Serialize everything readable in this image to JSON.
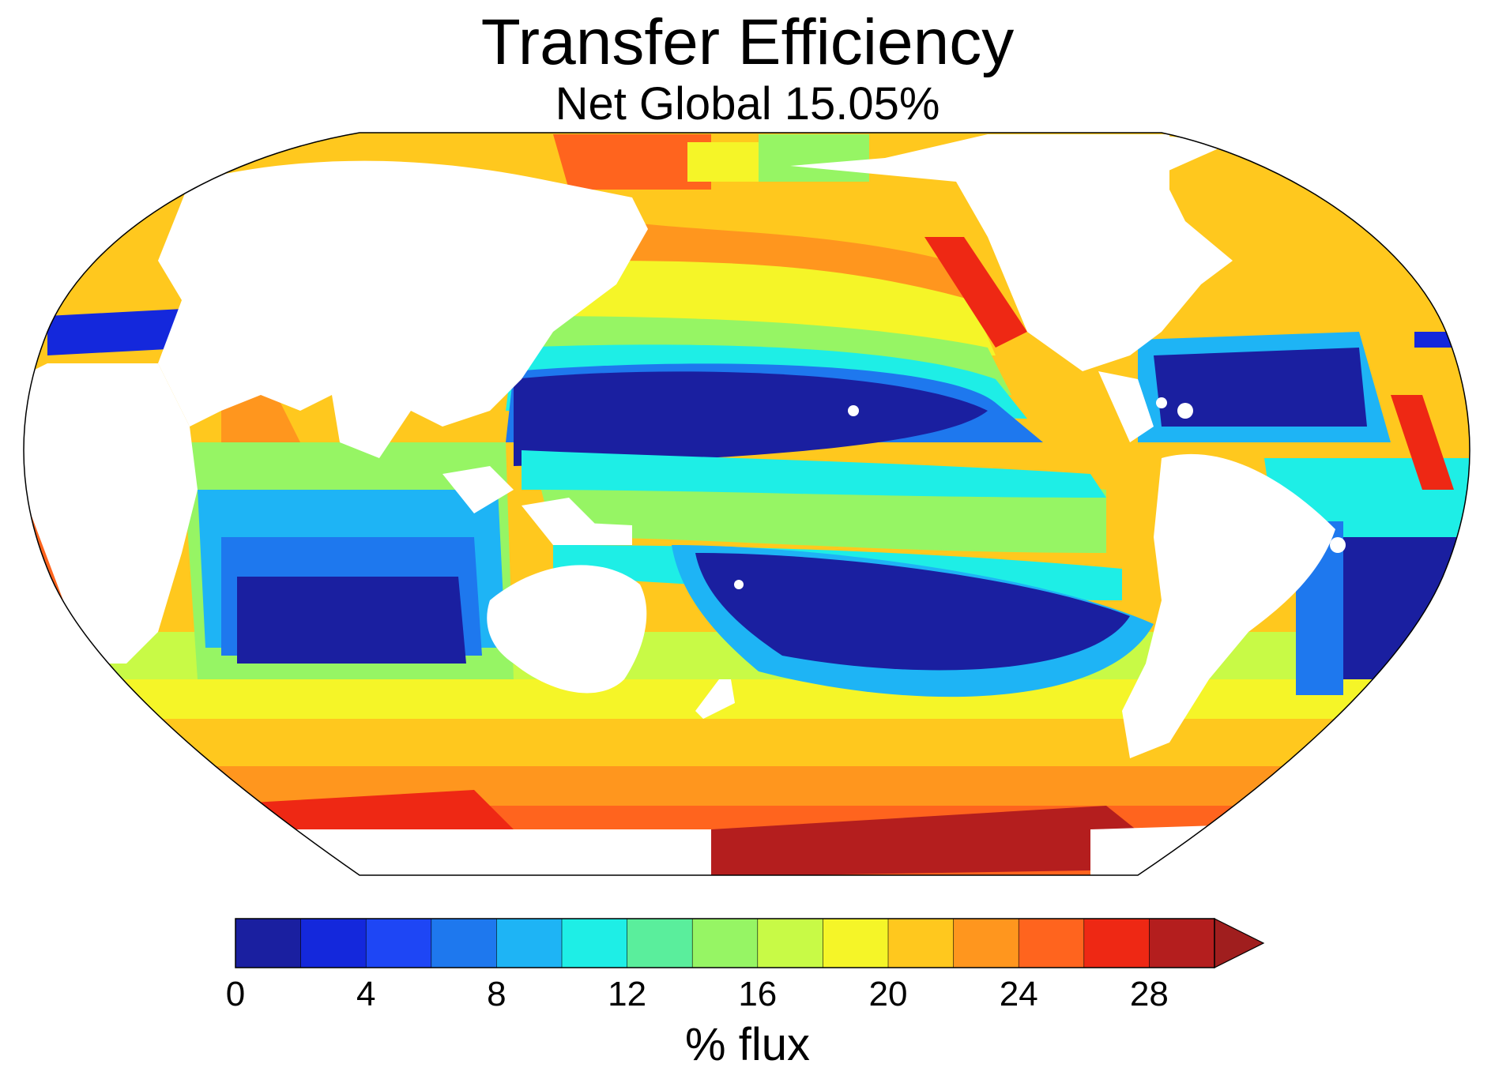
{
  "header": {
    "title": "Transfer Efficiency",
    "subtitle": "Net Global 15.05%"
  },
  "map": {
    "projection": "Robinson",
    "land_color": "#ffffff",
    "outline_color": "#000000"
  },
  "colorbar": {
    "label": "% flux",
    "min": 0,
    "max": 30,
    "step": 2,
    "extend": "max",
    "tick_values": [
      "0",
      "4",
      "8",
      "12",
      "16",
      "20",
      "24",
      "28"
    ],
    "colors": [
      "#1a1fa0",
      "#1428dc",
      "#1e46f5",
      "#1e78ee",
      "#1eb4f5",
      "#1eeee6",
      "#5aee9c",
      "#96f564",
      "#c8fa46",
      "#f5f528",
      "#ffc81e",
      "#ff961e",
      "#ff641e",
      "#ee2814",
      "#b41e1e"
    ],
    "extend_color": "#a01e1e"
  }
}
